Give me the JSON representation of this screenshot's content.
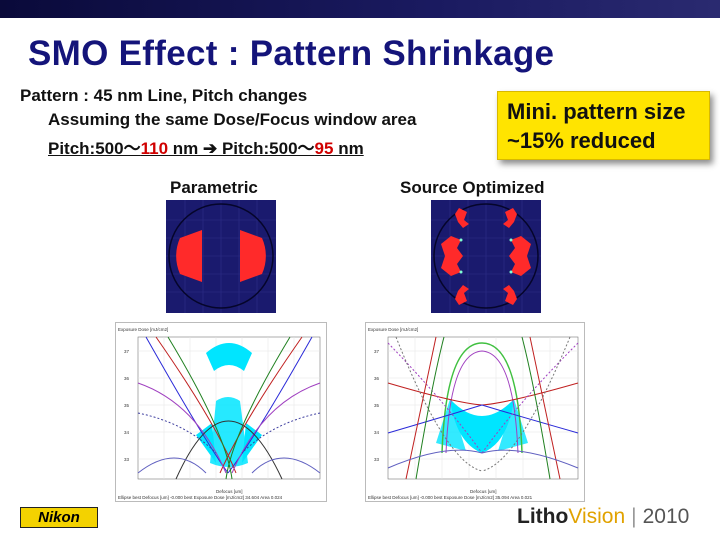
{
  "slide": {
    "title": "SMO Effect : Pattern Shrinkage",
    "line1": "Pattern : 45 nm Line, Pitch changes",
    "line2": "Assuming the same Dose/Focus window area",
    "line3_a": "Pitch:500～",
    "line3_b": "110",
    "line3_c": " nm  ➔ Pitch:500～",
    "line3_d": "95",
    "line3_e": " nm"
  },
  "callout": {
    "line1": "Mini. pattern size",
    "line2": "~15% reduced"
  },
  "left_panel": {
    "label": "Parametric"
  },
  "right_panel": {
    "label": "Source Optimized"
  },
  "footer": {
    "logo": "Nikon",
    "brand_a": "Litho",
    "brand_b": "Vision",
    "year": "2010"
  },
  "colors": {
    "title": "#14147a",
    "accent_red": "#d00000",
    "callout_bg": "#ffe400",
    "pupil_bg": "#1a1a6e",
    "source_red": "#ff2a2a",
    "window_fill": "#00e5ff"
  }
}
